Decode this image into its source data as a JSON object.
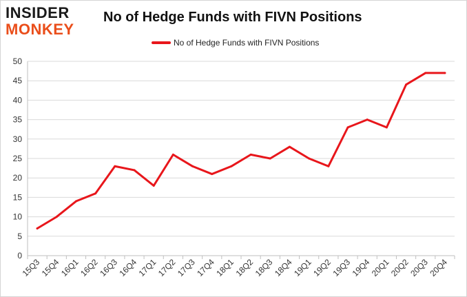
{
  "logo": {
    "line1": "INSIDER",
    "line2": "MONKEY"
  },
  "colors": {
    "series": "#e8161b",
    "grid": "#d9d9d9",
    "logo_accent": "#ea4e1b"
  },
  "chart_data": {
    "type": "line",
    "title": "No of Hedge Funds with FIVN Positions",
    "legend_position": "top",
    "grid": true,
    "xlabel": "",
    "ylabel": "",
    "ylim": [
      0,
      50
    ],
    "yticks": [
      0,
      5,
      10,
      15,
      20,
      25,
      30,
      35,
      40,
      45,
      50
    ],
    "categories": [
      "15Q3",
      "15Q4",
      "16Q1",
      "16Q2",
      "16Q3",
      "16Q4",
      "17Q1",
      "17Q2",
      "17Q3",
      "17Q4",
      "18Q1",
      "18Q2",
      "18Q3",
      "18Q4",
      "19Q1",
      "19Q2",
      "19Q3",
      "19Q4",
      "20Q1",
      "20Q2",
      "20Q3",
      "20Q4"
    ],
    "series": [
      {
        "name": "No of Hedge Funds with FIVN Positions",
        "values": [
          7,
          10,
          14,
          16,
          23,
          22,
          18,
          26,
          23,
          21,
          23,
          26,
          25,
          28,
          25,
          23,
          33,
          35,
          33,
          44,
          47,
          47
        ]
      }
    ]
  }
}
